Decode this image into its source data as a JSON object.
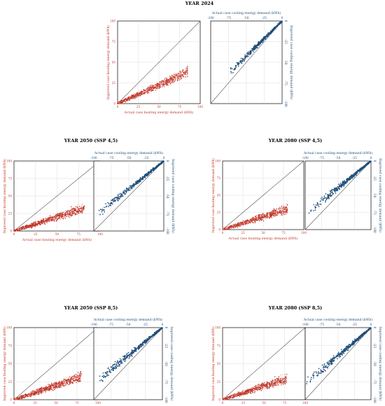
{
  "colors": {
    "heating": "#c0392b",
    "heating_light": "#f2b8b8",
    "cooling": "#1f4e79",
    "frame": "#000000",
    "grid": "#cfcfcf",
    "diag": "#555555"
  },
  "labels": {
    "heat_x": "Actual case heating energy demand (kWh)",
    "heat_y": "Improved case heating energy demand (kWh)",
    "cool_x": "Actual case cooling energy demand (kWh)",
    "cool_y": "Improved case cooling energy demand (kWh)"
  },
  "chart_data": [
    {
      "title": "YEAR 2024",
      "heating": {
        "type": "scatter",
        "xlim": [
          0,
          100
        ],
        "ylim": [
          0,
          100
        ],
        "ticks": [
          "0",
          "25",
          "50",
          "75",
          "100"
        ],
        "diagonal": true,
        "grid": true,
        "x_range": [
          0,
          85
        ],
        "slope": 0.45,
        "spread": 0.08
      },
      "cooling": {
        "type": "scatter",
        "xlim": [
          -100,
          0
        ],
        "ylim": [
          -100,
          0
        ],
        "ticks": [
          "-100",
          "-75",
          "-50",
          "-25",
          "0"
        ],
        "diagonal": true,
        "grid": true,
        "x_range": [
          -75,
          0
        ],
        "slope": 0.85,
        "spread": 0.06
      }
    },
    {
      "title": "YEAR 2050 (SSP 4,5)",
      "heating": {
        "type": "scatter",
        "xlim": [
          0,
          100
        ],
        "ylim": [
          0,
          100
        ],
        "ticks": [
          "0",
          "25",
          "50",
          "75",
          "100"
        ],
        "diagonal": true,
        "grid": true,
        "x_range": [
          0,
          82
        ],
        "slope": 0.4,
        "spread": 0.1
      },
      "cooling": {
        "type": "scatter",
        "xlim": [
          -100,
          0
        ],
        "ylim": [
          -100,
          0
        ],
        "ticks": [
          "-100",
          "-75",
          "-50",
          "-25",
          "0"
        ],
        "diagonal": true,
        "grid": true,
        "x_range": [
          -95,
          0
        ],
        "slope": 0.8,
        "spread": 0.08
      }
    },
    {
      "title": "YEAR 2080 (SSP 4,5)",
      "heating": {
        "type": "scatter",
        "xlim": [
          0,
          100
        ],
        "ylim": [
          0,
          100
        ],
        "ticks": [
          "0",
          "25",
          "50",
          "75",
          "100"
        ],
        "diagonal": true,
        "grid": true,
        "x_range": [
          0,
          80
        ],
        "slope": 0.38,
        "spread": 0.1
      },
      "cooling": {
        "type": "scatter",
        "xlim": [
          -100,
          0
        ],
        "ylim": [
          -100,
          0
        ],
        "ticks": [
          "-100",
          "-75",
          "-50",
          "-25",
          "0"
        ],
        "diagonal": true,
        "grid": true,
        "x_range": [
          -95,
          0
        ],
        "slope": 0.78,
        "spread": 0.09
      }
    },
    {
      "title": "YEAR 2050 (SSP 8,5)",
      "heating": {
        "type": "scatter",
        "xlim": [
          0,
          100
        ],
        "ylim": [
          0,
          100
        ],
        "ticks": [
          "0",
          "25",
          "50",
          "75",
          "100"
        ],
        "diagonal": true,
        "grid": true,
        "x_range": [
          0,
          80
        ],
        "slope": 0.4,
        "spread": 0.1
      },
      "cooling": {
        "type": "scatter",
        "xlim": [
          -100,
          0
        ],
        "ylim": [
          -100,
          0
        ],
        "ticks": [
          "-100",
          "-75",
          "-50",
          "-25",
          "0"
        ],
        "diagonal": true,
        "grid": true,
        "x_range": [
          -95,
          0
        ],
        "slope": 0.78,
        "spread": 0.09
      }
    },
    {
      "title": "YEAR 2080 (SSP 8,5)",
      "heating": {
        "type": "scatter",
        "xlim": [
          0,
          100
        ],
        "ylim": [
          0,
          100
        ],
        "ticks": [
          "0",
          "25",
          "50",
          "75",
          "100"
        ],
        "diagonal": true,
        "grid": true,
        "x_range": [
          0,
          78
        ],
        "slope": 0.38,
        "spread": 0.1
      },
      "cooling": {
        "type": "scatter",
        "xlim": [
          -100,
          0
        ],
        "ylim": [
          -100,
          0
        ],
        "ticks": [
          "-100",
          "-75",
          "-50",
          "-25",
          "0"
        ],
        "diagonal": true,
        "grid": true,
        "x_range": [
          -100,
          0
        ],
        "slope": 0.78,
        "spread": 0.1
      }
    }
  ]
}
